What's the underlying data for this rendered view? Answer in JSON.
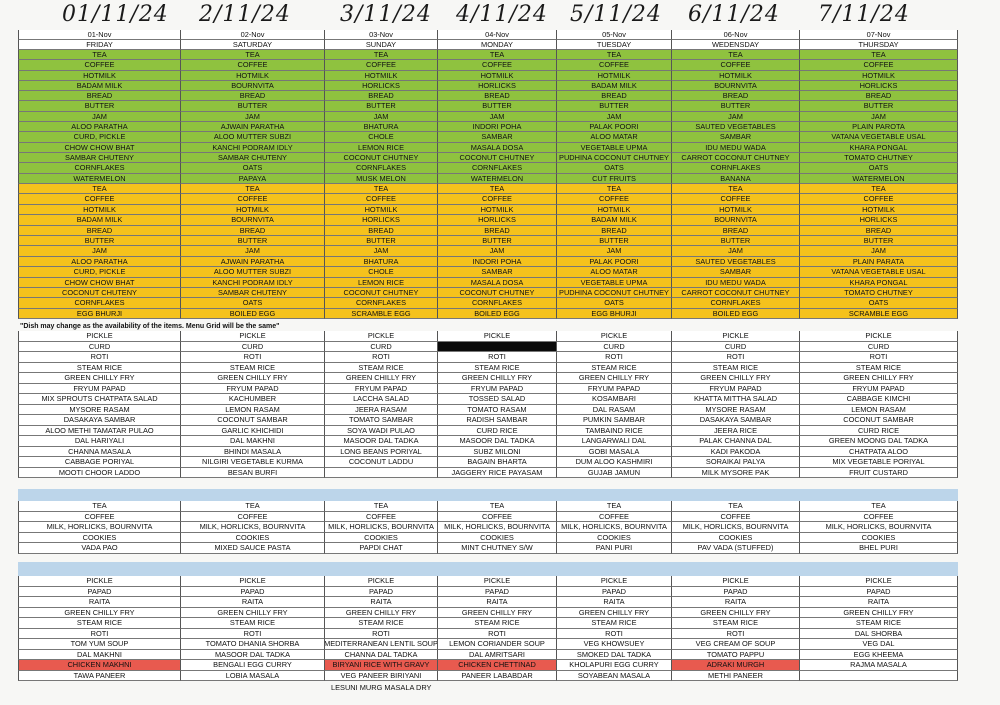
{
  "handwritten_dates": [
    "01/11/24",
    "2/11/24",
    "3/11/24",
    "4/11/24",
    "5/11/24",
    "6/11/24",
    "7/11/24"
  ],
  "header": {
    "dates": [
      "01-Nov",
      "02-Nov",
      "03-Nov",
      "04-Nov",
      "05-Nov",
      "06-Nov",
      "07-Nov"
    ],
    "days": [
      "FRIDAY",
      "SATURDAY",
      "SUNDAY",
      "MONDAY",
      "TUESDAY",
      "WEDENSDAY",
      "THURSDAY"
    ]
  },
  "breakfast_green": [
    [
      "TEA",
      "TEA",
      "TEA",
      "TEA",
      "TEA",
      "TEA",
      "TEA"
    ],
    [
      "COFFEE",
      "COFFEE",
      "COFFEE",
      "COFFEE",
      "COFFEE",
      "COFFEE",
      "COFFEE"
    ],
    [
      "HOTMILK",
      "HOTMILK",
      "HOTMILK",
      "HOTMILK",
      "HOTMILK",
      "HOTMILK",
      "HOTMILK"
    ],
    [
      "BADAM MILK",
      "BOURNVITA",
      "HORLICKS",
      "HORLICKS",
      "BADAM MILK",
      "BOURNVITA",
      "HORLICKS"
    ],
    [
      "BREAD",
      "BREAD",
      "BREAD",
      "BREAD",
      "BREAD",
      "BREAD",
      "BREAD"
    ],
    [
      "BUTTER",
      "BUTTER",
      "BUTTER",
      "BUTTER",
      "BUTTER",
      "BUTTER",
      "BUTTER"
    ],
    [
      "JAM",
      "JAM",
      "JAM",
      "JAM",
      "JAM",
      "JAM",
      "JAM"
    ],
    [
      "ALOO PARATHA",
      "AJWAIN PARATHA",
      "BHATURA",
      "INDORI POHA",
      "PALAK POORI",
      "SAUTED VEGETABLES",
      "PLAIN PAROTA"
    ],
    [
      "CURD, PICKLE",
      "ALOO MUTTER SUBZI",
      "CHOLE",
      "SAMBAR",
      "ALOO MATAR",
      "SAMBAR",
      "VATANA VEGETABLE USAL"
    ],
    [
      "CHOW CHOW BHAT",
      "KANCHI PODRAM IDLY",
      "LEMON RICE",
      "MASALA DOSA",
      "VEGETABLE UPMA",
      "IDU MEDU WADA",
      "KHARA PONGAL"
    ],
    [
      "SAMBAR CHUTENY",
      "SAMBAR CHUTENY",
      "COCONUT CHUTNEY",
      "COCONUT CHUTNEY",
      "PUDHINA COCONUT CHUTNEY",
      "CARROT COCONUT CHUTNEY",
      "TOMATO CHUTNEY"
    ],
    [
      "CORNFLAKES",
      "OATS",
      "CORNFLAKES",
      "CORNFLAKES",
      "OATS",
      "CORNFLAKES",
      "OATS"
    ],
    [
      "WATERMELON",
      "PAPAYA",
      "MUSK MELON",
      "WATERMELON",
      "CUT FRUITS",
      "BANANA",
      "WATERMELON"
    ]
  ],
  "breakfast_yellow": [
    [
      "TEA",
      "TEA",
      "TEA",
      "TEA",
      "TEA",
      "TEA",
      "TEA"
    ],
    [
      "COFFEE",
      "COFFEE",
      "COFFEE",
      "COFFEE",
      "COFFEE",
      "COFFEE",
      "COFFEE"
    ],
    [
      "HOTMILK",
      "HOTMILK",
      "HOTMILK",
      "HOTMILK",
      "HOTMILK",
      "HOTMILK",
      "HOTMILK"
    ],
    [
      "BADAM MILK",
      "BOURNVITA",
      "HORLICKS",
      "HORLICKS",
      "BADAM MILK",
      "BOURNVITA",
      "HORLICKS"
    ],
    [
      "BREAD",
      "BREAD",
      "BREAD",
      "BREAD",
      "BREAD",
      "BREAD",
      "BREAD"
    ],
    [
      "BUTTER",
      "BUTTER",
      "BUTTER",
      "BUTTER",
      "BUTTER",
      "BUTTER",
      "BUTTER"
    ],
    [
      "JAM",
      "JAM",
      "JAM",
      "JAM",
      "JAM",
      "JAM",
      "JAM"
    ],
    [
      "ALOO PARATHA",
      "AJWAIN PARATHA",
      "BHATURA",
      "INDORI POHA",
      "PALAK POORI",
      "SAUTED VEGETABLES",
      "PLAIN PARATA"
    ],
    [
      "CURD, PICKLE",
      "ALOO MUTTER SUBZI",
      "CHOLE",
      "SAMBAR",
      "ALOO MATAR",
      "SAMBAR",
      "VATANA VEGETABLE USAL"
    ],
    [
      "CHOW CHOW BHAT",
      "KANCHI PODRAM IDLY",
      "LEMON RICE",
      "MASALA DOSA",
      "VEGETABLE UPMA",
      "IDU MEDU WADA",
      "KHARA PONGAL"
    ],
    [
      "COCONUT CHUTENY",
      "SAMBAR CHUTENY",
      "COCONUT CHUTNEY",
      "COCONUT CHUTNEY",
      "PUDHINA COCONUT CHUTNEY",
      "CARROT COCONUT CHUTNEY",
      "TOMATO CHUTNEY"
    ],
    [
      "CORNFLAKES",
      "OATS",
      "CORNFLAKES",
      "CORNFLAKES",
      "OATS",
      "CORNFLAKES",
      "OATS"
    ],
    [
      "EGG BHURJI",
      "BOILED EGG",
      "SCRAMBLE EGG",
      "BOILED EGG",
      "EGG BHURJI",
      "BOILED EGG",
      "SCRAMBLE EGG"
    ]
  ],
  "note": "\"Dish may change as the availability of the items. Menu Grid will be the same\"",
  "lunch": [
    [
      "PICKLE",
      "PICKLE",
      "PICKLE",
      "PICKLE",
      "PICKLE",
      "PICKLE",
      "PICKLE"
    ],
    [
      "CURD",
      "CURD",
      "CURD",
      "",
      "CURD",
      "CURD",
      "CURD"
    ],
    [
      "ROTI",
      "ROTI",
      "ROTI",
      "ROTI",
      "ROTI",
      "ROTI",
      "ROTI"
    ],
    [
      "STEAM RICE",
      "STEAM RICE",
      "STEAM RICE",
      "STEAM RICE",
      "STEAM RICE",
      "STEAM RICE",
      "STEAM RICE"
    ],
    [
      "GREEN CHILLY FRY",
      "GREEN CHILLY FRY",
      "GREEN CHILLY FRY",
      "GREEN CHILLY FRY",
      "GREEN CHILLY FRY",
      "GREEN CHILLY FRY",
      "GREEN CHILLY FRY"
    ],
    [
      "FRYUM PAPAD",
      "FRYUM PAPAD",
      "FRYUM PAPAD",
      "FRYUM PAPAD",
      "FRYUM PAPAD",
      "FRYUM PAPAD",
      "FRYUM PAPAD"
    ],
    [
      "MIX SPROUTS CHATPATA SALAD",
      "KACHUMBER",
      "LACCHA SALAD",
      "TOSSED SALAD",
      "KOSAMBARI",
      "KHATTA MITTHA SALAD",
      "CABBAGE KIMCHI"
    ],
    [
      "MYSORE RASAM",
      "LEMON RASAM",
      "JEERA RASAM",
      "TOMATO RASAM",
      "DAL RASAM",
      "MYSORE RASAM",
      "LEMON RASAM"
    ],
    [
      "DASAKAYA SAMBAR",
      "COCONUT SAMBAR",
      "TOMATO SAMBAR",
      "RADISH SAMBAR",
      "PUMKIN SAMBAR",
      "DASAKAYA SAMBAR",
      "COCONUT SAMBAR"
    ],
    [
      "ALOO METHI TAMATAR PULAO",
      "GARLIC KHICHIDI",
      "SOYA WADI PULAO",
      "CURD RICE",
      "TAMBAIND RICE",
      "JEERA RICE",
      "CURD RICE"
    ],
    [
      "DAL HARIYALI",
      "DAL MAKHNI",
      "MASOOR DAL TADKA",
      "MASOOR DAL TADKA",
      "LANGARWALI DAL",
      "PALAK CHANNA DAL",
      "GREEN MOONG DAL TADKA"
    ],
    [
      "CHANNA MASALA",
      "BHINDI MASALA",
      "LONG BEANS PORIYAL",
      "SUBZ MILONI",
      "GOBI MASALA",
      "KADI PAKODA",
      "CHATPATA ALOO"
    ],
    [
      "CABBAGE PORIYAL",
      "NILGIRI VEGETABLE KURMA",
      "COCONUT LADDU",
      "BAGAIN BHARTA",
      "DUM ALOO KASHMIRI",
      "SORAIKAI PALYA",
      "MIX VEGETABLE PORIYAL"
    ],
    [
      "MOOTI CHOOR LADDO",
      "BESAN BURFI",
      "",
      "JAGGERY RICE PAYASAM",
      "GUJAB JAMUN",
      "MILK MYSORE PAK",
      "FRUIT CUSTARD"
    ]
  ],
  "snacks": [
    [
      "TEA",
      "TEA",
      "TEA",
      "TEA",
      "TEA",
      "TEA",
      "TEA"
    ],
    [
      "COFFEE",
      "COFFEE",
      "COFFEE",
      "COFFEE",
      "COFFEE",
      "COFFEE",
      "COFFEE"
    ],
    [
      "MILK, HORLICKS, BOURNVITA",
      "MILK, HORLICKS, BOURNVITA",
      "MILK, HORLICKS, BOURNVITA",
      "MILK, HORLICKS, BOURNVITA",
      "MILK, HORLICKS, BOURNVITA",
      "MILK, HORLICKS, BOURNVITA",
      "MILK, HORLICKS, BOURNVITA"
    ],
    [
      "COOKIES",
      "COOKIES",
      "COOKIES",
      "COOKIES",
      "COOKIES",
      "COOKIES",
      "COOKIES"
    ],
    [
      "VADA PAO",
      "MIXED SAUCE PASTA",
      "PAPDI CHAT",
      "MINT CHUTNEY S/W",
      "PANI PURI",
      "PAV VADA (STUFFED)",
      "BHEL PURI"
    ]
  ],
  "dinner": [
    [
      "PICKLE",
      "PICKLE",
      "PICKLE",
      "PICKLE",
      "PICKLE",
      "PICKLE",
      "PICKLE"
    ],
    [
      "PAPAD",
      "PAPAD",
      "PAPAD",
      "PAPAD",
      "PAPAD",
      "PAPAD",
      "PAPAD"
    ],
    [
      "RAITA",
      "RAITA",
      "RAITA",
      "RAITA",
      "RAITA",
      "RAITA",
      "RAITA"
    ],
    [
      "GREEN CHILLY FRY",
      "GREEN CHILLY FRY",
      "GREEN CHILLY FRY",
      "GREEN CHILLY FRY",
      "GREEN CHILLY FRY",
      "GREEN CHILLY FRY",
      "GREEN CHILLY FRY"
    ],
    [
      "STEAM RICE",
      "STEAM RICE",
      "STEAM RICE",
      "STEAM RICE",
      "STEAM RICE",
      "STEAM RICE",
      "STEAM RICE"
    ],
    [
      "ROTI",
      "ROTI",
      "ROTI",
      "ROTI",
      "ROTI",
      "ROTI",
      "DAL SHORBA"
    ],
    [
      "TOM YUM SOUP",
      "TOMATO DHANIA SHORBA",
      "MEDITERRANEAN LENTIL SOUP",
      "LEMON CORIANDER SOUP",
      "VEG KHOWSUEY",
      "VEG CREAM OF SOUP",
      "VEG DAL"
    ],
    [
      "DAL MAKHNI",
      "MASOOR DAL TADKA",
      "CHANNA DAL TADKA",
      "DAL AMRITSARI",
      "SMOKED DAL TADKA",
      "TOMATO PAPPU",
      "EGG KHEEMA"
    ],
    [
      "CHICKEN MAKHNI",
      "BENGALI EGG CURRY",
      "BIRYANI RICE WITH GRAVY",
      "CHICKEN CHETTINAD",
      "KHOLAPURI EGG CURRY",
      "ADRAKI MURGH",
      "RAJMA MASALA"
    ],
    [
      "TAWA PANEER",
      "LOBIA MASALA",
      "VEG PANEER BIRIYANI",
      "PANEER LABABDAR",
      "SOYABEAN MASALA",
      "METHI PANEER",
      ""
    ]
  ],
  "dinner_extra": "LESUNI MURG MASALA DRY"
}
